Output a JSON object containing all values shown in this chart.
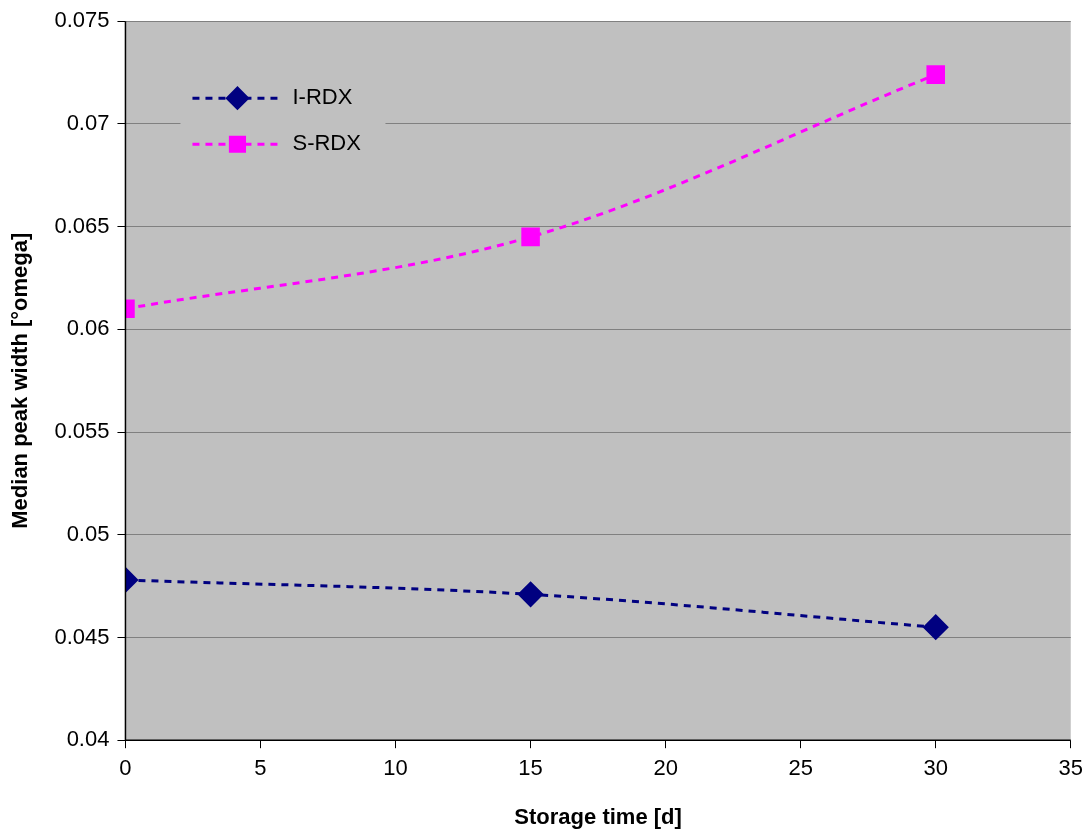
{
  "chart_data": {
    "type": "line",
    "xlabel": "Storage time [d]",
    "ylabel": "Median peak width [°omega]",
    "x": [
      0,
      15,
      30
    ],
    "series": [
      {
        "name": "I-RDX",
        "color": "#000080",
        "values": [
          0.0478,
          0.0471,
          0.0455
        ],
        "marker": "diamond"
      },
      {
        "name": "S-RDX",
        "color": "#ff00ff",
        "values": [
          0.061,
          0.0645,
          0.0724
        ],
        "marker": "square"
      }
    ],
    "xlim": [
      0,
      35
    ],
    "xticks": [
      0,
      5,
      10,
      15,
      20,
      25,
      30,
      35
    ],
    "ylim": [
      0.04,
      0.075
    ],
    "yticks": [
      0.04,
      0.045,
      0.05,
      0.055,
      0.06,
      0.065,
      0.07,
      0.075
    ],
    "grid": "y",
    "legend": "top left",
    "line_style": "dashed"
  }
}
